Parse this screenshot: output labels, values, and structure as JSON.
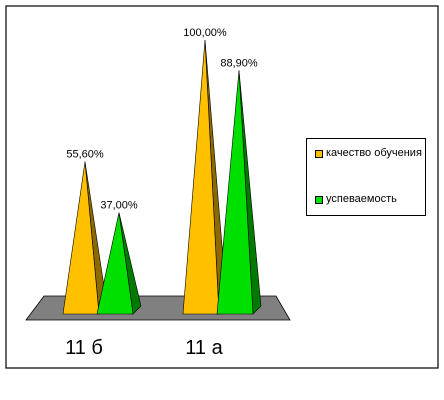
{
  "chart_data": {
    "type": "bar",
    "style": "3d-cone",
    "categories": [
      "11 б",
      "11 а"
    ],
    "series": [
      {
        "name": "качество обучения",
        "values": [
          55.6,
          100.0
        ],
        "labels": [
          "55,60%",
          "100,00%"
        ],
        "color": "#FFC000"
      },
      {
        "name": "успеваемость",
        "values": [
          37.0,
          88.9
        ],
        "labels": [
          "37,00%",
          "88,90%"
        ],
        "color": "#00E000"
      }
    ],
    "ylim": [
      0,
      100
    ],
    "grid": false,
    "legend_position": "right",
    "floor_color": "#808080",
    "frame_color": "#000000"
  }
}
